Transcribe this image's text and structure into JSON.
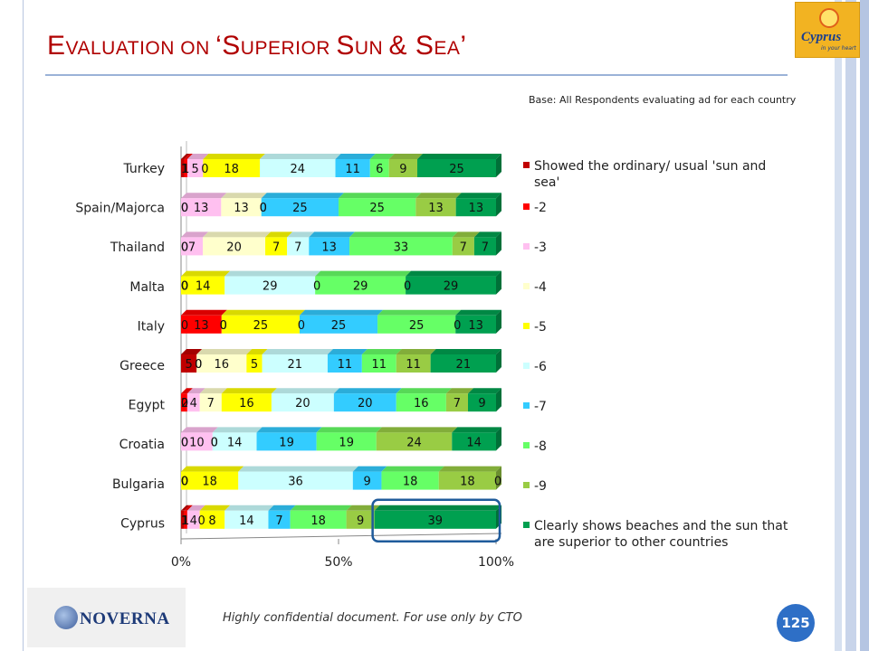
{
  "slide": {
    "title_parts": [
      {
        "text": "E",
        "big": true
      },
      {
        "text": "VALUATION ON ",
        "big": false
      },
      {
        "text": "‘S",
        "big": true
      },
      {
        "text": "UPERIOR ",
        "big": false
      },
      {
        "text": "S",
        "big": true
      },
      {
        "text": "UN ",
        "big": false
      },
      {
        "text": "& S",
        "big": true
      },
      {
        "text": "EA",
        "big": false
      },
      {
        "text": "’",
        "big": true
      }
    ],
    "base_note": "Base: All Respondents evaluating ad for each country",
    "logo_text": "Cyprus",
    "logo_subtext": "in your heart",
    "footer": "Highly confidential document. For use only by CTO",
    "page_number": "125",
    "company_logo": "NOVERNA"
  },
  "chart_data": {
    "type": "bar",
    "orientation": "horizontal",
    "stacked": "percent",
    "categories": [
      "Turkey",
      "Spain/Majorca",
      "Thailand",
      "Malta",
      "Italy",
      "Greece",
      "Egypt",
      "Croatia",
      "Bulgaria",
      "Cyprus"
    ],
    "xticks": [
      "0%",
      "50%",
      "100%"
    ],
    "legend_position": "right",
    "series": [
      {
        "name": "Showed the ordinary/ usual 'sun and sea'",
        "color": "#c00000",
        "values": [
          1,
          0,
          0,
          0,
          0,
          5,
          0,
          0,
          0,
          1
        ]
      },
      {
        "name": "-2",
        "color": "#ff0000",
        "values": [
          1,
          0,
          0,
          0,
          13,
          0,
          2,
          0,
          0,
          1
        ]
      },
      {
        "name": "-3",
        "color": "#ffc0f0",
        "values": [
          5,
          13,
          7,
          0,
          0,
          0,
          4,
          10,
          0,
          4
        ]
      },
      {
        "name": "-4",
        "color": "#ffffcc",
        "values": [
          0,
          13,
          20,
          0,
          0,
          16,
          7,
          0,
          0,
          0
        ]
      },
      {
        "name": "-5",
        "color": "#ffff00",
        "values": [
          18,
          0,
          7,
          14,
          25,
          5,
          16,
          0,
          18,
          8
        ]
      },
      {
        "name": "-6",
        "color": "#ccffff",
        "values": [
          24,
          0,
          7,
          29,
          0,
          21,
          20,
          14,
          36,
          14
        ]
      },
      {
        "name": "-7",
        "color": "#33ccff",
        "values": [
          11,
          25,
          13,
          0,
          25,
          11,
          20,
          19,
          9,
          7
        ]
      },
      {
        "name": "-8",
        "color": "#66ff66",
        "values": [
          6,
          25,
          33,
          29,
          25,
          11,
          16,
          19,
          18,
          18
        ]
      },
      {
        "name": "-9",
        "color": "#99cc44",
        "values": [
          9,
          13,
          7,
          0,
          0,
          11,
          7,
          24,
          18,
          9
        ]
      },
      {
        "name": "Clearly shows beaches and the sun that are superior to other countries",
        "color": "#00a050",
        "values": [
          25,
          13,
          7,
          29,
          13,
          21,
          9,
          14,
          0,
          39
        ]
      }
    ],
    "highlight": {
      "category": "Cyprus",
      "series": "Clearly shows beaches and the sun that are superior to other countries"
    }
  }
}
